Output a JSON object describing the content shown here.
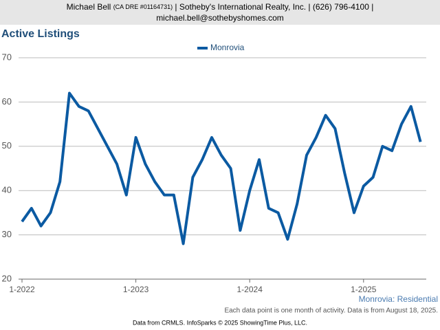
{
  "header": {
    "name": "Michael Bell",
    "license": "(CA DRE #01164731)",
    "rest": "| Sotheby's International Realty, Inc. | (626) 796-4100 |",
    "email": "michael.bell@sothebyshomes.com"
  },
  "chart_data": {
    "type": "line",
    "title": "Active Listings",
    "categories": [
      "1-2022",
      null,
      null,
      null,
      null,
      null,
      null,
      null,
      null,
      null,
      null,
      null,
      "1-2023",
      null,
      null,
      null,
      null,
      null,
      null,
      null,
      null,
      null,
      null,
      null,
      "1-2024",
      null,
      null,
      null,
      null,
      null,
      null,
      null,
      null,
      null,
      null,
      null,
      "1-2025",
      null,
      null,
      null,
      null,
      null,
      null
    ],
    "series": [
      {
        "name": "Monrovia",
        "color": "#0b5aa2",
        "values": [
          33,
          36,
          32,
          35,
          42,
          62,
          59,
          58,
          54,
          50,
          46,
          39,
          52,
          46,
          42,
          39,
          39,
          28,
          43,
          47,
          52,
          48,
          45,
          31,
          40,
          47,
          36,
          35,
          29,
          37,
          48,
          52,
          57,
          54,
          44,
          35,
          41,
          43,
          50,
          49,
          55,
          59,
          51
        ]
      }
    ],
    "ylim": [
      20,
      70
    ],
    "yticks": [
      20,
      30,
      40,
      50,
      60,
      70
    ],
    "grid": true,
    "series_label": "Monrovia: Residential",
    "note": "Each data point is one month of activity. Data is from August 18, 2025.",
    "source": "Data from CRMLS. InfoSparks © 2025 ShowingTime Plus, LLC."
  }
}
